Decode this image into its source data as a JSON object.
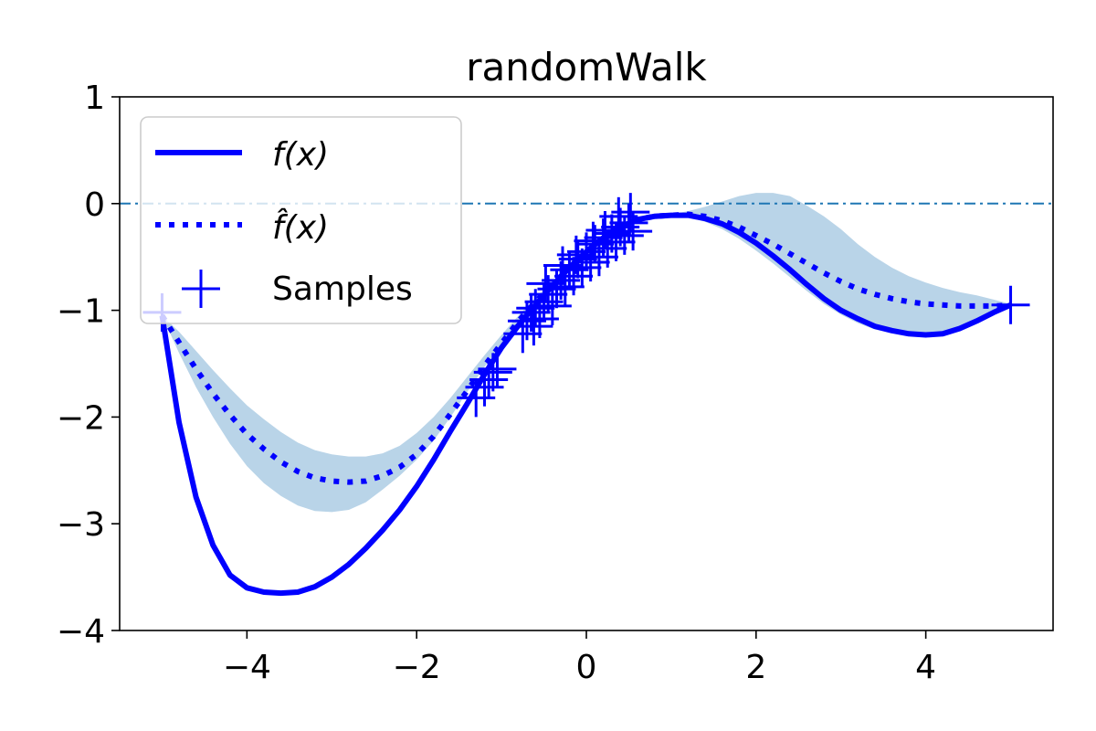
{
  "chart_data": {
    "type": "line",
    "title": "randomWalk",
    "xlabel": "",
    "ylabel": "",
    "xlim": [
      -5.5,
      5.5
    ],
    "ylim": [
      -4,
      1
    ],
    "x_ticks": [
      -4,
      -2,
      0,
      2,
      4
    ],
    "x_tick_labels": [
      "−4",
      "−2",
      "0",
      "2",
      "4"
    ],
    "y_ticks": [
      -4,
      -3,
      -2,
      -1,
      0,
      1
    ],
    "y_tick_labels": [
      "−4",
      "−3",
      "−2",
      "−1",
      "0",
      "1"
    ],
    "grid": false,
    "legend": {
      "placement": "upper-left",
      "entries": [
        "f(x)",
        "f̂(x)",
        "Samples"
      ]
    },
    "reference_line": {
      "y": 0,
      "style": "dash-dot",
      "color": "#1f77b4"
    },
    "colors": {
      "line": "#0000ff",
      "band": "#b9d4e8",
      "reference": "#1f77b4"
    },
    "series": [
      {
        "name": "f(x)",
        "style": "solid",
        "x": [
          -5.0,
          -4.8,
          -4.6,
          -4.4,
          -4.2,
          -4.0,
          -3.8,
          -3.6,
          -3.4,
          -3.2,
          -3.0,
          -2.8,
          -2.6,
          -2.4,
          -2.2,
          -2.0,
          -1.8,
          -1.6,
          -1.4,
          -1.2,
          -1.0,
          -0.8,
          -0.6,
          -0.4,
          -0.2,
          0.0,
          0.2,
          0.4,
          0.6,
          0.8,
          1.0,
          1.2,
          1.4,
          1.6,
          1.8,
          2.0,
          2.2,
          2.4,
          2.6,
          2.8,
          3.0,
          3.2,
          3.4,
          3.6,
          3.8,
          4.0,
          4.2,
          4.4,
          4.6,
          4.8,
          5.0
        ],
        "y": [
          -1.05,
          -2.05,
          -2.75,
          -3.2,
          -3.48,
          -3.6,
          -3.64,
          -3.65,
          -3.64,
          -3.59,
          -3.5,
          -3.38,
          -3.23,
          -3.06,
          -2.87,
          -2.65,
          -2.4,
          -2.13,
          -1.87,
          -1.6,
          -1.35,
          -1.14,
          -0.95,
          -0.77,
          -0.6,
          -0.45,
          -0.32,
          -0.22,
          -0.15,
          -0.12,
          -0.11,
          -0.11,
          -0.14,
          -0.19,
          -0.27,
          -0.37,
          -0.49,
          -0.62,
          -0.76,
          -0.89,
          -1.0,
          -1.08,
          -1.15,
          -1.19,
          -1.22,
          -1.23,
          -1.22,
          -1.17,
          -1.1,
          -1.02,
          -0.95
        ]
      },
      {
        "name": "f̂(x)",
        "style": "dotted",
        "x": [
          -5.0,
          -4.8,
          -4.6,
          -4.4,
          -4.2,
          -4.0,
          -3.8,
          -3.6,
          -3.4,
          -3.2,
          -3.0,
          -2.8,
          -2.6,
          -2.4,
          -2.2,
          -2.0,
          -1.8,
          -1.6,
          -1.4,
          -1.2,
          -1.0,
          -0.8,
          -0.6,
          -0.4,
          -0.2,
          0.0,
          0.2,
          0.4,
          0.6,
          0.8,
          1.0,
          1.2,
          1.4,
          1.6,
          1.8,
          2.0,
          2.2,
          2.4,
          2.6,
          2.8,
          3.0,
          3.2,
          3.4,
          3.6,
          3.8,
          4.0,
          4.2,
          4.4,
          4.6,
          4.8,
          5.0
        ],
        "y": [
          -1.05,
          -1.3,
          -1.55,
          -1.78,
          -1.98,
          -2.16,
          -2.3,
          -2.42,
          -2.51,
          -2.57,
          -2.6,
          -2.61,
          -2.6,
          -2.55,
          -2.47,
          -2.35,
          -2.18,
          -1.97,
          -1.75,
          -1.52,
          -1.31,
          -1.1,
          -0.92,
          -0.76,
          -0.6,
          -0.45,
          -0.32,
          -0.22,
          -0.15,
          -0.12,
          -0.11,
          -0.1,
          -0.12,
          -0.16,
          -0.22,
          -0.3,
          -0.38,
          -0.47,
          -0.56,
          -0.65,
          -0.73,
          -0.8,
          -0.85,
          -0.89,
          -0.92,
          -0.94,
          -0.95,
          -0.96,
          -0.96,
          -0.96,
          -0.95
        ]
      }
    ],
    "band": {
      "name": "uncertainty",
      "x": [
        -5.0,
        -4.8,
        -4.6,
        -4.4,
        -4.2,
        -4.0,
        -3.8,
        -3.6,
        -3.4,
        -3.2,
        -3.0,
        -2.8,
        -2.6,
        -2.4,
        -2.2,
        -2.0,
        -1.8,
        -1.6,
        -1.4,
        -1.2,
        -1.0,
        -0.8,
        -0.6,
        -0.4,
        -0.2,
        0.0,
        0.2,
        0.4,
        0.6,
        0.8,
        1.0,
        1.2,
        1.4,
        1.6,
        1.8,
        2.0,
        2.2,
        2.4,
        2.6,
        2.8,
        3.0,
        3.2,
        3.4,
        3.6,
        3.8,
        4.0,
        4.2,
        4.4,
        4.6,
        4.8,
        5.0
      ],
      "lower": [
        -1.05,
        -1.4,
        -1.72,
        -2.0,
        -2.25,
        -2.46,
        -2.62,
        -2.74,
        -2.83,
        -2.88,
        -2.89,
        -2.87,
        -2.8,
        -2.68,
        -2.55,
        -2.4,
        -2.22,
        -2.0,
        -1.76,
        -1.53,
        -1.32,
        -1.11,
        -0.93,
        -0.77,
        -0.61,
        -0.46,
        -0.33,
        -0.23,
        -0.16,
        -0.13,
        -0.12,
        -0.13,
        -0.17,
        -0.24,
        -0.33,
        -0.44,
        -0.56,
        -0.69,
        -0.82,
        -0.94,
        -1.04,
        -1.12,
        -1.18,
        -1.21,
        -1.22,
        -1.22,
        -1.2,
        -1.16,
        -1.1,
        -1.03,
        -0.96
      ],
      "upper": [
        -1.05,
        -1.2,
        -1.38,
        -1.56,
        -1.73,
        -1.89,
        -2.02,
        -2.14,
        -2.24,
        -2.31,
        -2.35,
        -2.37,
        -2.37,
        -2.34,
        -2.27,
        -2.15,
        -2.0,
        -1.82,
        -1.62,
        -1.42,
        -1.23,
        -1.05,
        -0.88,
        -0.73,
        -0.58,
        -0.44,
        -0.31,
        -0.21,
        -0.14,
        -0.11,
        -0.1,
        -0.07,
        -0.03,
        0.02,
        0.07,
        0.1,
        0.1,
        0.07,
        -0.02,
        -0.12,
        -0.24,
        -0.38,
        -0.5,
        -0.6,
        -0.68,
        -0.74,
        -0.79,
        -0.83,
        -0.86,
        -0.9,
        -0.94
      ]
    },
    "samples": {
      "name": "Samples",
      "x": [
        -5.0,
        -1.3,
        -1.2,
        -1.15,
        -1.1,
        -1.05,
        -0.75,
        -0.7,
        -0.65,
        -0.6,
        -0.55,
        -0.5,
        -0.45,
        -0.4,
        -0.35,
        -0.3,
        -0.25,
        -0.2,
        -0.15,
        -0.1,
        -0.05,
        0.0,
        0.05,
        0.1,
        0.15,
        0.2,
        0.25,
        0.3,
        0.35,
        0.4,
        0.45,
        0.5,
        0.55,
        -0.62,
        -0.48,
        -0.28,
        -0.12,
        0.08,
        0.22,
        0.38,
        0.52,
        5.0
      ],
      "y": [
        -1.02,
        -1.82,
        -1.72,
        -1.65,
        -1.58,
        -1.55,
        -1.22,
        -1.1,
        -1.02,
        -0.98,
        -1.08,
        -0.92,
        -0.85,
        -0.96,
        -0.8,
        -0.72,
        -0.78,
        -0.62,
        -0.68,
        -0.52,
        -0.6,
        -0.45,
        -0.55,
        -0.38,
        -0.5,
        -0.32,
        -0.42,
        -0.28,
        -0.36,
        -0.22,
        -0.3,
        -0.18,
        -0.26,
        -1.15,
        -0.75,
        -0.58,
        -0.48,
        -0.35,
        -0.25,
        -0.12,
        -0.08,
        -0.95
      ]
    }
  }
}
